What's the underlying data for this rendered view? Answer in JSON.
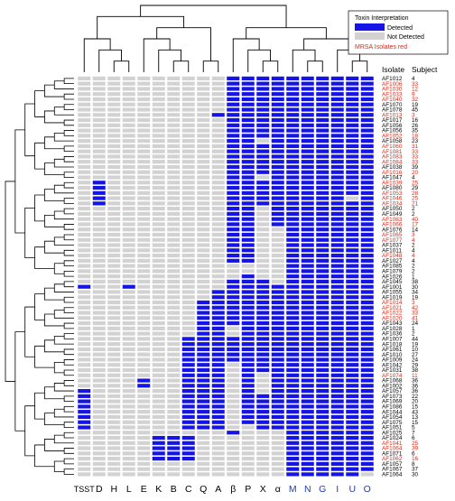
{
  "colors": {
    "detected": "#1414e6",
    "not_detected": "#d2d2d2",
    "mrsa": "#d42a1a",
    "normal": "#000000",
    "blue_label": "#1f3bb3",
    "line": "#000000"
  },
  "legend": {
    "title": "Toxin Interpretation",
    "detected": "Detected",
    "not_detected": "Not Detected",
    "mrsa_note": "MRSA Isolates red"
  },
  "chart_data": {
    "type": "heatmap",
    "column_header_isolate": "Isolate",
    "column_header_subject": "Subject",
    "columns": [
      {
        "label": "TSST",
        "blue": false
      },
      {
        "label": "D",
        "blue": false
      },
      {
        "label": "H",
        "blue": false
      },
      {
        "label": "L",
        "blue": false
      },
      {
        "label": "E",
        "blue": false
      },
      {
        "label": "K",
        "blue": false
      },
      {
        "label": "B",
        "blue": false
      },
      {
        "label": "C",
        "blue": false
      },
      {
        "label": "Q",
        "blue": false
      },
      {
        "label": "A",
        "blue": false
      },
      {
        "label": "β",
        "blue": false
      },
      {
        "label": "P",
        "blue": false
      },
      {
        "label": "X",
        "blue": false
      },
      {
        "label": "α",
        "blue": false
      },
      {
        "label": "M",
        "blue": true
      },
      {
        "label": "N",
        "blue": true
      },
      {
        "label": "G",
        "blue": true
      },
      {
        "label": "I",
        "blue": true
      },
      {
        "label": "U",
        "blue": true
      },
      {
        "label": "O",
        "blue": true
      }
    ],
    "rows": [
      {
        "isolate": "AF1012",
        "subject": "4",
        "mrsa": false,
        "values": "00000000001111111111"
      },
      {
        "isolate": "AF1006",
        "subject": "33",
        "mrsa": true,
        "values": "00000000001111111111"
      },
      {
        "isolate": "AF1030",
        "subject": "12",
        "mrsa": true,
        "values": "00000000001111111111"
      },
      {
        "isolate": "AF1033",
        "subject": "9",
        "mrsa": true,
        "values": "00000000001111111111"
      },
      {
        "isolate": "AF1040",
        "subject": "32",
        "mrsa": true,
        "values": "00000000001111111111"
      },
      {
        "isolate": "AF1070",
        "subject": "19",
        "mrsa": false,
        "values": "00000000001111111111"
      },
      {
        "isolate": "AF1078",
        "subject": "45",
        "mrsa": false,
        "values": "00000000001111111111"
      },
      {
        "isolate": "AF1013",
        "subject": "3",
        "mrsa": true,
        "values": "00000000011111111111"
      },
      {
        "isolate": "AF1017",
        "subject": "16",
        "mrsa": false,
        "values": "00000000001111111111"
      },
      {
        "isolate": "AF1056",
        "subject": "26",
        "mrsa": false,
        "values": "00000000001111111111"
      },
      {
        "isolate": "AF1056",
        "subject": "35",
        "mrsa": false,
        "values": "00000000001111111111"
      },
      {
        "isolate": "AF1052",
        "subject": "18",
        "mrsa": true,
        "values": "00000000001111111111"
      },
      {
        "isolate": "AF1058",
        "subject": "23",
        "mrsa": false,
        "values": "00000000001101111111"
      },
      {
        "isolate": "AF1060",
        "subject": "31",
        "mrsa": true,
        "values": "00000000001111111111"
      },
      {
        "isolate": "AF1081",
        "subject": "33",
        "mrsa": true,
        "values": "00000000001111111111"
      },
      {
        "isolate": "AF1083",
        "subject": "33",
        "mrsa": true,
        "values": "00000000001111111111"
      },
      {
        "isolate": "AF1084",
        "subject": "33",
        "mrsa": true,
        "values": "00000000001111111111"
      },
      {
        "isolate": "AF1038",
        "subject": "39",
        "mrsa": false,
        "values": "00000000001111111111"
      },
      {
        "isolate": "AF1016",
        "subject": "20",
        "mrsa": true,
        "values": "00000000001111111111"
      },
      {
        "isolate": "AF1047",
        "subject": "4",
        "mrsa": false,
        "values": "00000000001101111111"
      },
      {
        "isolate": "AF1039",
        "subject": "25",
        "mrsa": true,
        "values": "01000000001111111111"
      },
      {
        "isolate": "AF1080",
        "subject": "29",
        "mrsa": false,
        "values": "01000000001111111111"
      },
      {
        "isolate": "AF1053",
        "subject": "28",
        "mrsa": true,
        "values": "01000000001111111111"
      },
      {
        "isolate": "AF1046",
        "subject": "25",
        "mrsa": true,
        "values": "01000000001111111101"
      },
      {
        "isolate": "AF1034",
        "subject": "21",
        "mrsa": true,
        "values": "01000000001111111111"
      },
      {
        "isolate": "AF1050",
        "subject": "2",
        "mrsa": false,
        "values": "00000000001101111111"
      },
      {
        "isolate": "AF1049",
        "subject": "2",
        "mrsa": false,
        "values": "00000000001101111111"
      },
      {
        "isolate": "AF1063",
        "subject": "40",
        "mrsa": true,
        "values": "00000000001101111111"
      },
      {
        "isolate": "AF1066",
        "subject": "17",
        "mrsa": true,
        "values": "00000000001101111111"
      },
      {
        "isolate": "AF1076",
        "subject": "14",
        "mrsa": false,
        "values": "00000000001100111111"
      },
      {
        "isolate": "AF1065",
        "subject": "3",
        "mrsa": true,
        "values": "00000000001100111111"
      },
      {
        "isolate": "AF1077",
        "subject": "4",
        "mrsa": true,
        "values": "00000000001100111111"
      },
      {
        "isolate": "AF1037",
        "subject": "2",
        "mrsa": false,
        "values": "00000000001100111111"
      },
      {
        "isolate": "AF1011",
        "subject": "4",
        "mrsa": false,
        "values": "00000000001100111111"
      },
      {
        "isolate": "AF1048",
        "subject": "4",
        "mrsa": true,
        "values": "00000000001100111111"
      },
      {
        "isolate": "AF1027",
        "subject": "4",
        "mrsa": false,
        "values": "00000000001100111111"
      },
      {
        "isolate": "AF1085",
        "subject": "2",
        "mrsa": false,
        "values": "00000000000000111111"
      },
      {
        "isolate": "AF1079",
        "subject": "2",
        "mrsa": false,
        "values": "00000000000000111111"
      },
      {
        "isolate": "AF1026",
        "subject": "1",
        "mrsa": false,
        "values": "00000000000100111111"
      },
      {
        "isolate": "AF1045",
        "subject": "38",
        "mrsa": false,
        "values": "00000000001110111111"
      },
      {
        "isolate": "AF1001",
        "subject": "30",
        "mrsa": false,
        "values": "10010000001111111111"
      },
      {
        "isolate": "AF1055",
        "subject": "34",
        "mrsa": false,
        "values": "00000000011111111111"
      },
      {
        "isolate": "AF1019",
        "subject": "19",
        "mrsa": false,
        "values": "00000000011111111111"
      },
      {
        "isolate": "AF1014",
        "subject": "3",
        "mrsa": true,
        "values": "00000000111111111111"
      },
      {
        "isolate": "AF1021",
        "subject": "42",
        "mrsa": true,
        "values": "00000000111111111111"
      },
      {
        "isolate": "AF1022",
        "subject": "33",
        "mrsa": true,
        "values": "00000000111111111111"
      },
      {
        "isolate": "AF1020",
        "subject": "41",
        "mrsa": true,
        "values": "00000000111111111111"
      },
      {
        "isolate": "AF1043",
        "subject": "24",
        "mrsa": false,
        "values": "00000000111111111111"
      },
      {
        "isolate": "AF1028",
        "subject": "1",
        "mrsa": false,
        "values": "00000000110111111111"
      },
      {
        "isolate": "AF1036",
        "subject": "2",
        "mrsa": false,
        "values": "00000000110111111111"
      },
      {
        "isolate": "AF1007",
        "subject": "44",
        "mrsa": false,
        "values": "00000001111111111111"
      },
      {
        "isolate": "AF1018",
        "subject": "19",
        "mrsa": false,
        "values": "00000001111111111111"
      },
      {
        "isolate": "AF1061",
        "subject": "10",
        "mrsa": false,
        "values": "00000001111111111111"
      },
      {
        "isolate": "AF1010",
        "subject": "27",
        "mrsa": false,
        "values": "00000001111111111111"
      },
      {
        "isolate": "AF1009",
        "subject": "24",
        "mrsa": false,
        "values": "00000001111111111111"
      },
      {
        "isolate": "AF1042",
        "subject": "29",
        "mrsa": false,
        "values": "00000001110111111111"
      },
      {
        "isolate": "AF1031",
        "subject": "38",
        "mrsa": false,
        "values": "00000001110111111111"
      },
      {
        "isolate": "AF1074",
        "subject": "11",
        "mrsa": true,
        "values": "00000001110101111111"
      },
      {
        "isolate": "AF1068",
        "subject": "36",
        "mrsa": false,
        "values": "00001001110101111111"
      },
      {
        "isolate": "AF1002",
        "subject": "36",
        "mrsa": false,
        "values": "00001001110101111111"
      },
      {
        "isolate": "AF1057",
        "subject": "36",
        "mrsa": false,
        "values": "10000001110101111111"
      },
      {
        "isolate": "AF1073",
        "subject": "22",
        "mrsa": false,
        "values": "10000001110111111111"
      },
      {
        "isolate": "AF1069",
        "subject": "20",
        "mrsa": false,
        "values": "10000001110111111111"
      },
      {
        "isolate": "AF1086",
        "subject": "15",
        "mrsa": false,
        "values": "10000001110111111111"
      },
      {
        "isolate": "AF1044",
        "subject": "43",
        "mrsa": false,
        "values": "10000001110111111111"
      },
      {
        "isolate": "AF1054",
        "subject": "13",
        "mrsa": false,
        "values": "10000001110111111111"
      },
      {
        "isolate": "AF1075",
        "subject": "15",
        "mrsa": false,
        "values": "10000001110111111111"
      },
      {
        "isolate": "AF1051",
        "subject": "5",
        "mrsa": false,
        "values": "10000001110011111111"
      },
      {
        "isolate": "AF1025",
        "subject": "7",
        "mrsa": false,
        "values": "00000000001000111111"
      },
      {
        "isolate": "AF1024",
        "subject": "6",
        "mrsa": false,
        "values": "00000111000000111111"
      },
      {
        "isolate": "AF1041",
        "subject": "25",
        "mrsa": true,
        "values": "00000111000000111111"
      },
      {
        "isolate": "AF1064",
        "subject": "39",
        "mrsa": true,
        "values": "00000111000000111111"
      },
      {
        "isolate": "AF1071",
        "subject": "6",
        "mrsa": false,
        "values": "00000111000000111111"
      },
      {
        "isolate": "AF1062",
        "subject": "16",
        "mrsa": true,
        "values": "00000111000000111111"
      },
      {
        "isolate": "AF1057",
        "subject": "8",
        "mrsa": false,
        "values": "00000000000000111111"
      },
      {
        "isolate": "AF1067",
        "subject": "37",
        "mrsa": false,
        "values": "00000000000000111111"
      },
      {
        "isolate": "AF1064",
        "subject": "30",
        "mrsa": false,
        "values": "00000000000000111110"
      }
    ]
  }
}
